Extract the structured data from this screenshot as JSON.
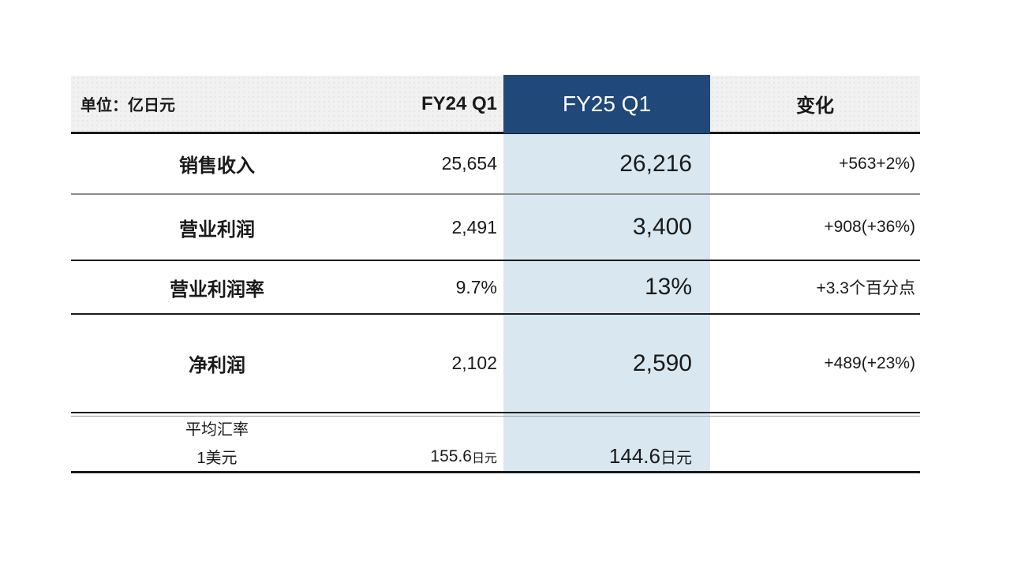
{
  "table": {
    "unit_label": "单位：亿日元",
    "columns": {
      "fy24": "FY24 Q1",
      "fy25": "FY25 Q1",
      "change": "变化"
    },
    "rows": [
      {
        "label": "销售收入",
        "fy24": "25,654",
        "fy25": "26,216",
        "change": "+563+2%)"
      },
      {
        "label": "营业利润",
        "fy24": "2,491",
        "fy25": "3,400",
        "change": "+908(+36%)"
      },
      {
        "label": "营业利润率",
        "fy24": "9.7%",
        "fy25": "13%",
        "change": "+3.3个百分点"
      },
      {
        "label": "净利润",
        "fy24": "2,102",
        "fy25": "2,590",
        "change": "+489(+23%)"
      }
    ],
    "exchange": {
      "title": "平均汇率",
      "base": "1美元",
      "fy24_value": "155.6",
      "fy24_unit": "日元",
      "fy25_value": "144.6",
      "fy25_unit": "日元"
    },
    "colors": {
      "header_blue": "#20497A",
      "highlight_blue": "#D9E8F0",
      "header_gray": "#F1F1F1"
    }
  },
  "chart_data": {
    "type": "table",
    "title": "",
    "unit": "亿日元",
    "columns": [
      "FY24 Q1",
      "FY25 Q1",
      "变化"
    ],
    "rows": [
      {
        "metric": "销售收入",
        "fy24_q1": 25654,
        "fy25_q1": 26216,
        "change": "+563+2%)"
      },
      {
        "metric": "营业利润",
        "fy24_q1": 2491,
        "fy25_q1": 3400,
        "change": "+908(+36%)"
      },
      {
        "metric": "营业利润率",
        "fy24_q1": "9.7%",
        "fy25_q1": "13%",
        "change": "+3.3个百分点"
      },
      {
        "metric": "净利润",
        "fy24_q1": 2102,
        "fy25_q1": 2590,
        "change": "+489(+23%)"
      },
      {
        "metric": "平均汇率 1美元",
        "fy24_q1": "155.6日元",
        "fy25_q1": "144.6日元",
        "change": ""
      }
    ],
    "highlighted_column": "FY25 Q1"
  }
}
